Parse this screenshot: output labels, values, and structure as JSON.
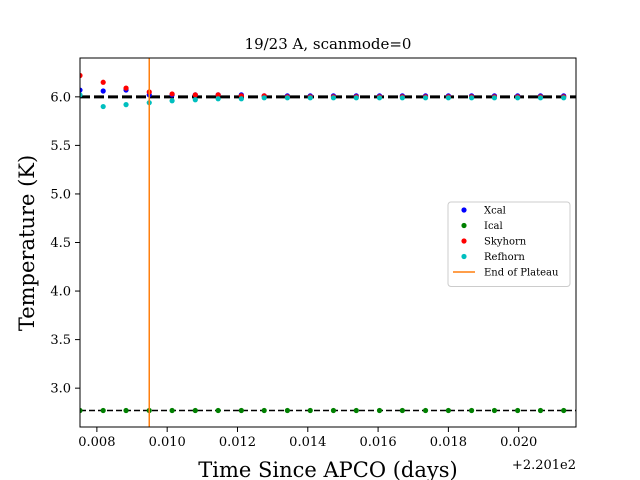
{
  "chart_data": {
    "type": "scatter",
    "title": "19/23 A, scanmode=0",
    "xlabel": "Time Since APCO (days)",
    "ylabel": "Temperature (K)",
    "x_offset_label": "+2.201e2",
    "xlim": [
      0.00752,
      0.02163
    ],
    "ylim": [
      2.6,
      6.4
    ],
    "x_ticks": [
      0.008,
      0.01,
      0.012,
      0.014,
      0.016,
      0.018,
      0.02
    ],
    "x_tick_labels": [
      "0.008",
      "0.010",
      "0.012",
      "0.014",
      "0.016",
      "0.018",
      "0.020"
    ],
    "y_ticks": [
      3.0,
      3.5,
      4.0,
      4.5,
      5.0,
      5.5,
      6.0
    ],
    "y_tick_labels": [
      "3.0",
      "3.5",
      "4.0",
      "4.5",
      "5.0",
      "5.5",
      "6.0"
    ],
    "x": [
      0.00752,
      0.00818,
      0.00883,
      0.00949,
      0.01014,
      0.0108,
      0.01145,
      0.01211,
      0.01276,
      0.01342,
      0.01407,
      0.01473,
      0.01538,
      0.01604,
      0.01669,
      0.01735,
      0.018,
      0.01866,
      0.01931,
      0.01997,
      0.02062,
      0.02128
    ],
    "series": [
      {
        "name": "Xcal",
        "color": "#0000ff",
        "values": [
          6.07,
          6.06,
          6.07,
          6.02,
          6.02,
          6.02,
          6.02,
          6.02,
          6.01,
          6.01,
          6.01,
          6.01,
          6.01,
          6.01,
          6.01,
          6.01,
          6.01,
          6.01,
          6.01,
          6.01,
          6.01,
          6.01
        ]
      },
      {
        "name": "Ical",
        "color": "#008000",
        "values": [
          2.77,
          2.77,
          2.77,
          2.77,
          2.77,
          2.77,
          2.77,
          2.77,
          2.77,
          2.77,
          2.77,
          2.77,
          2.77,
          2.77,
          2.77,
          2.77,
          2.77,
          2.77,
          2.77,
          2.77,
          2.77,
          2.77
        ]
      },
      {
        "name": "Skyhorn",
        "color": "#ff0000",
        "values": [
          6.22,
          6.15,
          6.09,
          6.05,
          6.03,
          6.02,
          6.02,
          6.01,
          6.01,
          6.0,
          6.0,
          6.0,
          6.0,
          6.0,
          6.0,
          6.0,
          6.0,
          6.0,
          6.0,
          6.0,
          6.0,
          6.0
        ]
      },
      {
        "name": "Refhorn",
        "color": "#00bfbf",
        "values": [
          6.02,
          5.9,
          5.92,
          5.94,
          5.96,
          5.97,
          5.98,
          5.98,
          5.99,
          5.99,
          5.99,
          5.99,
          5.99,
          5.99,
          5.99,
          5.99,
          5.99,
          5.99,
          5.99,
          5.99,
          5.99,
          5.99
        ]
      }
    ],
    "hlines": [
      {
        "y": 6.0,
        "color": "#000000",
        "style": "dashed",
        "width": "thick"
      },
      {
        "y": 2.77,
        "color": "#000000",
        "style": "dashed",
        "width": "normal"
      }
    ],
    "vline": {
      "name": "End of Plateau",
      "x": 0.00949,
      "color": "#ff7f0e"
    },
    "legend_placement": "center-right",
    "grid": false
  }
}
